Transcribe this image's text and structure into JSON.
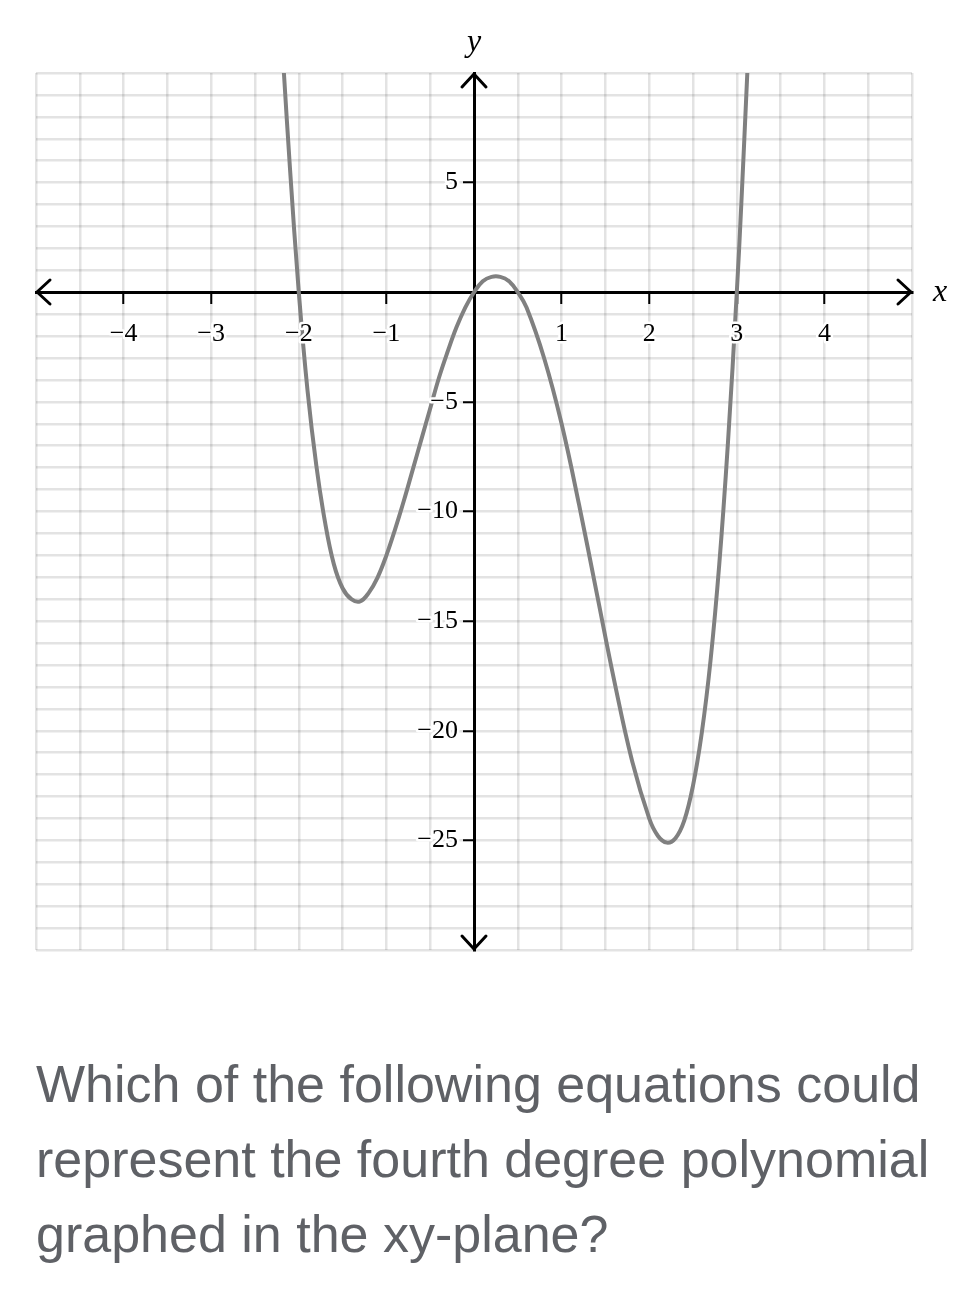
{
  "chart_data": {
    "type": "line",
    "xlabel": "x",
    "ylabel": "y",
    "x": [
      -2.17,
      -2.1,
      -2,
      -1.9,
      -1.8,
      -1.7,
      -1.6,
      -1.5,
      -1.4,
      -1.3,
      -1.2,
      -1.1,
      -1,
      -0.9,
      -0.8,
      -0.7,
      -0.6,
      -0.5,
      -0.4,
      -0.3,
      -0.2,
      -0.1,
      0,
      0.1,
      0.2,
      0.3,
      0.4,
      0.5,
      0.6,
      0.8,
      1,
      1.2,
      1.4,
      1.6,
      1.8,
      2,
      2.1,
      2.2,
      2.3,
      2.4,
      2.5,
      2.6,
      2.7,
      2.8,
      2.9,
      3,
      3.05,
      3.12
    ],
    "series": [
      {
        "color": "#808080",
        "values": [
          10,
          5.6,
          0,
          -4.5,
          -7.9,
          -10.5,
          -12.4,
          -13.5,
          -14,
          -14.1,
          -13.7,
          -13,
          -12,
          -10.8,
          -9.5,
          -8.1,
          -6.7,
          -5.3,
          -3.9,
          -2.7,
          -1.6,
          -0.7,
          0,
          0.5,
          0.7,
          0.7,
          0.5,
          0,
          -0.7,
          -3,
          -6,
          -9.7,
          -13.7,
          -17.7,
          -21.3,
          -24,
          -24.8,
          -25.1,
          -24.9,
          -24.1,
          -22.5,
          -20.1,
          -16.8,
          -12.4,
          -6.8,
          0,
          3.9,
          10
        ]
      }
    ],
    "xlim": [
      -5,
      5
    ],
    "ylim": [
      -30,
      10
    ],
    "xticks": [
      {
        "value": -5,
        "label": null
      },
      {
        "value": -4.5,
        "label": null
      },
      {
        "value": -4,
        "label": "−4"
      },
      {
        "value": -3.5,
        "label": null
      },
      {
        "value": -3,
        "label": "−3"
      },
      {
        "value": -2.5,
        "label": null
      },
      {
        "value": -2,
        "label": "−2"
      },
      {
        "value": -1.5,
        "label": null
      },
      {
        "value": -1,
        "label": "−1"
      },
      {
        "value": -0.5,
        "label": null
      },
      {
        "value": 0,
        "label": null
      },
      {
        "value": 0.5,
        "label": null
      },
      {
        "value": 1,
        "label": "1"
      },
      {
        "value": 1.5,
        "label": null
      },
      {
        "value": 2,
        "label": "2"
      },
      {
        "value": 2.5,
        "label": null
      },
      {
        "value": 3,
        "label": "3"
      },
      {
        "value": 3.5,
        "label": null
      },
      {
        "value": 4,
        "label": "4"
      },
      {
        "value": 4.5,
        "label": null
      },
      {
        "value": 5,
        "label": null
      }
    ],
    "yticks": [
      {
        "value": -30,
        "label": null
      },
      {
        "value": -29,
        "label": null
      },
      {
        "value": -28,
        "label": null
      },
      {
        "value": -27,
        "label": null
      },
      {
        "value": -26,
        "label": null
      },
      {
        "value": -25,
        "label": "−25"
      },
      {
        "value": -24,
        "label": null
      },
      {
        "value": -23,
        "label": null
      },
      {
        "value": -22,
        "label": null
      },
      {
        "value": -21,
        "label": null
      },
      {
        "value": -20,
        "label": "−20"
      },
      {
        "value": -19,
        "label": null
      },
      {
        "value": -18,
        "label": null
      },
      {
        "value": -17,
        "label": null
      },
      {
        "value": -16,
        "label": null
      },
      {
        "value": -15,
        "label": "−15"
      },
      {
        "value": -14,
        "label": null
      },
      {
        "value": -13,
        "label": null
      },
      {
        "value": -12,
        "label": null
      },
      {
        "value": -11,
        "label": null
      },
      {
        "value": -10,
        "label": "−10"
      },
      {
        "value": -9,
        "label": null
      },
      {
        "value": -8,
        "label": null
      },
      {
        "value": -7,
        "label": null
      },
      {
        "value": -6,
        "label": null
      },
      {
        "value": -5,
        "label": "−5"
      },
      {
        "value": -4,
        "label": null
      },
      {
        "value": -3,
        "label": null
      },
      {
        "value": -2,
        "label": null
      },
      {
        "value": -1,
        "label": null
      },
      {
        "value": 0,
        "label": null
      },
      {
        "value": 1,
        "label": null
      },
      {
        "value": 2,
        "label": null
      },
      {
        "value": 3,
        "label": null
      },
      {
        "value": 4,
        "label": null
      },
      {
        "value": 5,
        "label": "5"
      },
      {
        "value": 6,
        "label": null
      },
      {
        "value": 7,
        "label": null
      },
      {
        "value": 8,
        "label": null
      },
      {
        "value": 9,
        "label": null
      },
      {
        "value": 10,
        "label": null
      }
    ],
    "grid": true,
    "annotations": [
      "Which of the following equations could represent the fourth degree polynomial graphed in the xy-plane?"
    ]
  }
}
